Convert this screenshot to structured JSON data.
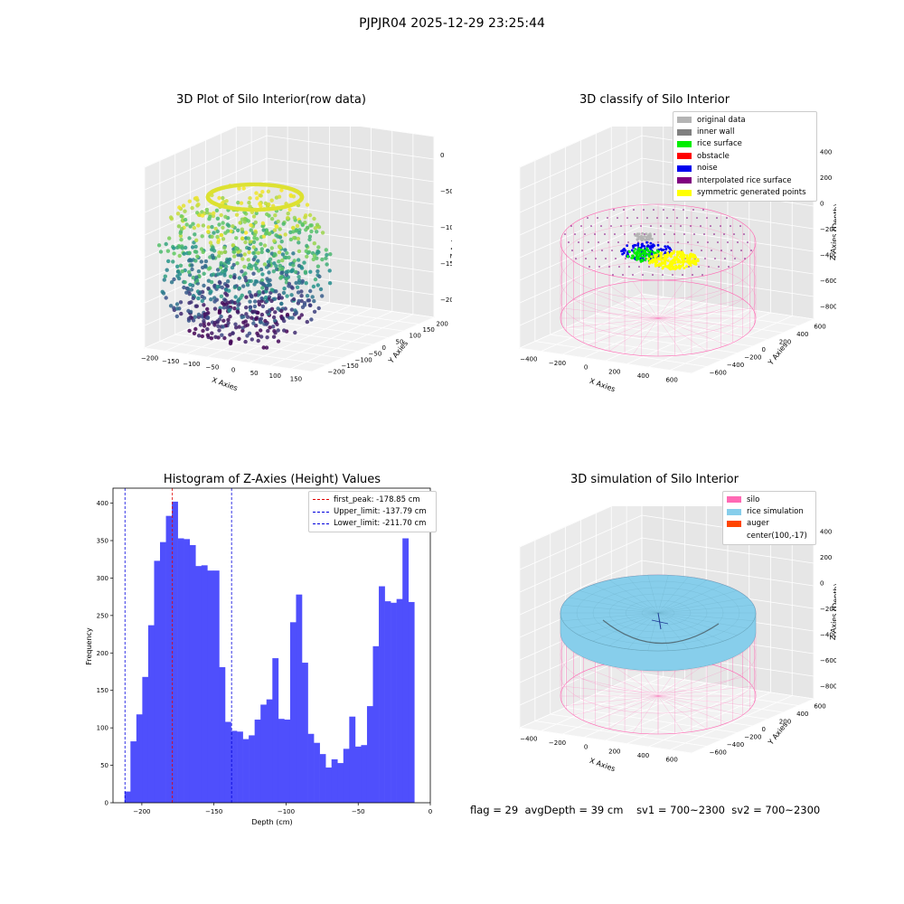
{
  "suptitle": "PJPJR04 2025-12-29 23:25:44",
  "status_line": {
    "flag": "flag = 29",
    "avg_depth": "avgDepth = 39 cm",
    "sv1": "sv1 = 700~2300",
    "sv2": "sv2 = 700~2300"
  },
  "colors": {
    "histogram_bar": "#4f4ffc",
    "first_peak_line": "#e00000",
    "limit_lines": "#0000dd",
    "viridis_low": "#440154",
    "viridis_mid": "#21918c",
    "viridis_high": "#fde725",
    "silo_wire": "#ff69b4",
    "rice_simulation": "#87ceeb",
    "auger": "#ff4500"
  },
  "chart_data": [
    {
      "id": "raw",
      "type": "scatter",
      "title": "3D Plot of Silo Interior(row data)",
      "xlabel": "X Axies",
      "ylabel": "Y Axies",
      "zlabel": "Z Axies (Depth)",
      "xticks": [
        "−200",
        "−150",
        "−100",
        "−50",
        "0",
        "50",
        "100",
        "150"
      ],
      "yticks": [
        "−200",
        "−150",
        "−100",
        "−50",
        "0",
        "50",
        "100",
        "150",
        "200"
      ],
      "zticks": [
        "0",
        "−50",
        "−100",
        "−150",
        "−200"
      ],
      "colormap": "viridis"
    },
    {
      "id": "classify",
      "type": "scatter",
      "title": "3D classify of Silo Interior",
      "xlabel": "X Axies",
      "ylabel": "Y Axies",
      "zlabel": "Z Axies (Depth)",
      "xticks": [
        "−400",
        "−200",
        "0",
        "200",
        "400",
        "600"
      ],
      "yticks": [
        "−600",
        "−400",
        "−200",
        "0",
        "200",
        "400",
        "600"
      ],
      "zticks": [
        "400",
        "200",
        "0",
        "−200",
        "−400",
        "−600",
        "−800"
      ],
      "legend_position": "top-right",
      "legend": [
        {
          "label": "original data",
          "color": "#b4b4b4"
        },
        {
          "label": "inner wall",
          "color": "#808080"
        },
        {
          "label": "rice surface",
          "color": "#00ee00"
        },
        {
          "label": "obstacle",
          "color": "#ff0000"
        },
        {
          "label": "noise",
          "color": "#0000ee"
        },
        {
          "label": "interpolated rice surface",
          "color": "#800080"
        },
        {
          "label": "symmetric generated points",
          "color": "#ffff00"
        }
      ]
    },
    {
      "id": "hist",
      "type": "bar",
      "title": "Histogram of Z-Axies (Height) Values",
      "xlabel": "Depth (cm)",
      "ylabel": "Frequency",
      "xlim": [
        -220,
        0
      ],
      "ylim": [
        0,
        420
      ],
      "xticks": [
        -200,
        -150,
        -100,
        -50,
        0
      ],
      "xtick_labels": [
        "−200",
        "−150",
        "−100",
        "−50",
        "0"
      ],
      "yticks": [
        0,
        50,
        100,
        150,
        200,
        250,
        300,
        350,
        400
      ],
      "bin_start": -212,
      "bin_width": 4.1,
      "values": [
        15,
        82,
        118,
        168,
        237,
        323,
        348,
        383,
        402,
        353,
        352,
        344,
        316,
        317,
        310,
        310,
        181,
        108,
        96,
        95,
        85,
        90,
        111,
        131,
        138,
        193,
        112,
        111,
        241,
        278,
        187,
        92,
        80,
        65,
        47,
        58,
        53,
        72,
        115,
        75,
        77,
        129,
        209,
        289,
        269,
        267,
        272,
        353,
        268
      ],
      "vlines": [
        {
          "label": "first_peak: -178.85 cm",
          "x": -178.85,
          "color": "#e00000"
        },
        {
          "label": "Upper_limit: -137.79 cm",
          "x": -137.79,
          "color": "#0000dd"
        },
        {
          "label": "Lower_limit: -211.70 cm",
          "x": -211.7,
          "color": "#0000dd"
        }
      ],
      "legend_position": "top-right"
    },
    {
      "id": "sim",
      "type": "scatter",
      "title": "3D simulation of Silo Interior",
      "xlabel": "X Axies",
      "ylabel": "Y Axies",
      "zlabel": "Z Axies (Depth)",
      "xticks": [
        "−400",
        "−200",
        "0",
        "200",
        "400",
        "600"
      ],
      "yticks": [
        "−600",
        "−400",
        "−200",
        "0",
        "200",
        "400",
        "600"
      ],
      "zticks": [
        "400",
        "200",
        "0",
        "−200",
        "−400",
        "−600",
        "−800"
      ],
      "legend_position": "top-right",
      "legend": [
        {
          "label": "silo",
          "color": "#ff69b4"
        },
        {
          "label": "rice simulation",
          "color": "#87ceeb"
        },
        {
          "label": "auger",
          "color": "#ff4500"
        },
        {
          "label": "center(100,-17)",
          "color": ""
        }
      ]
    }
  ]
}
